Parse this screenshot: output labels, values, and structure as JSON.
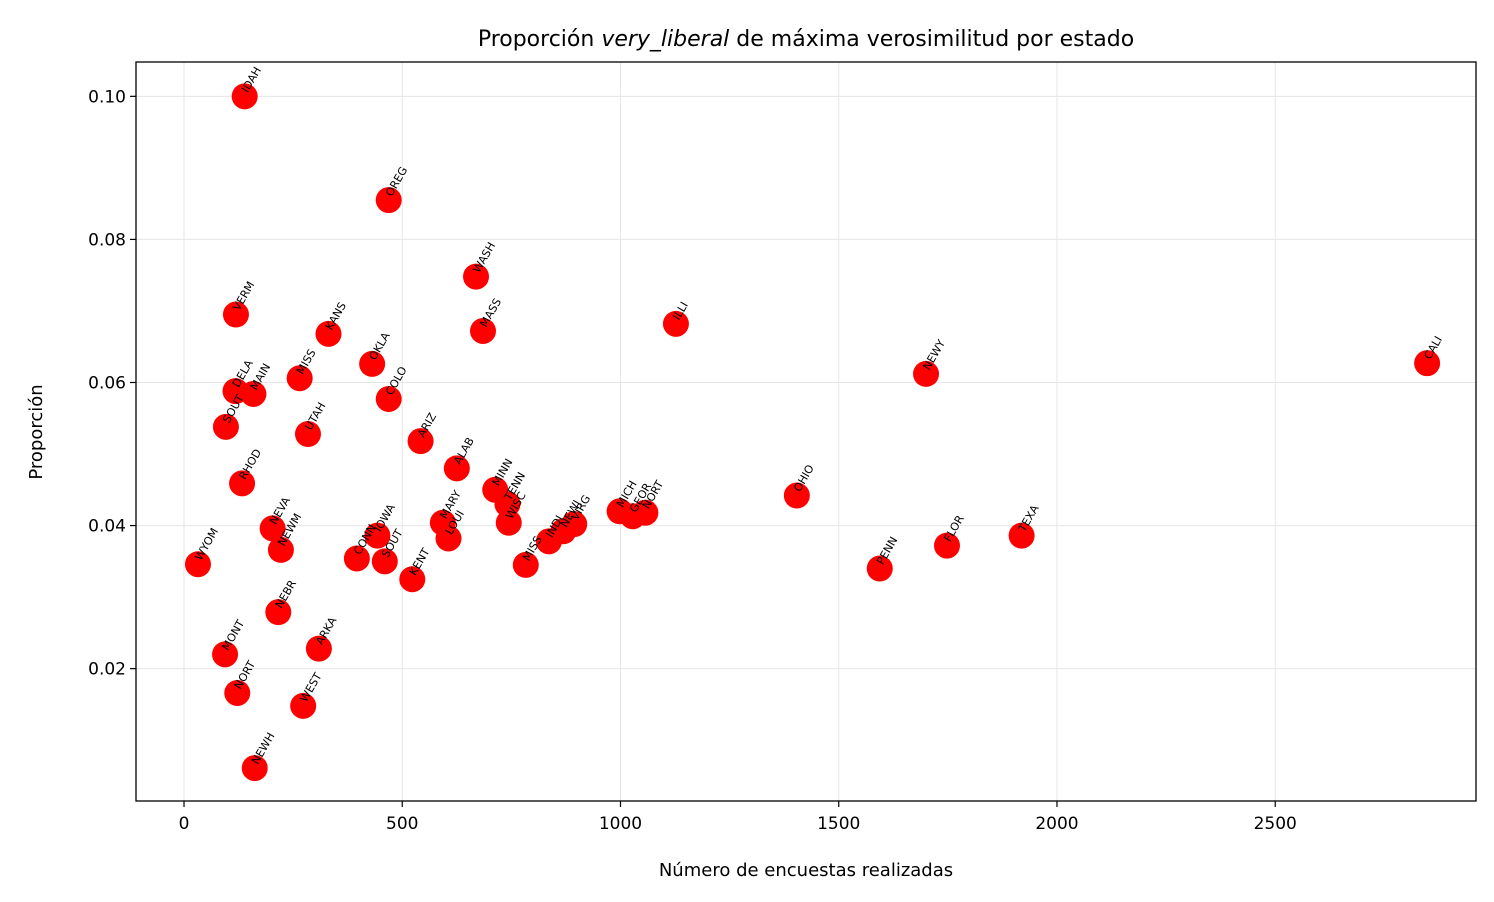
{
  "chart_data": {
    "type": "scatter",
    "title_pre": "Proporción ",
    "title_em": "very_liberal",
    "title_post": " de máxima verosimilitud por estado",
    "xlabel": "Número de encuestas realizadas",
    "ylabel": "Proporción",
    "xlim": [
      -110,
      2960
    ],
    "ylim": [
      0.0015,
      0.1048
    ],
    "xticks": [
      0,
      500,
      1000,
      1500,
      2000,
      2500
    ],
    "xtick_labels": [
      "0",
      "500",
      "1000",
      "1500",
      "2000",
      "2500"
    ],
    "yticks": [
      0.02,
      0.04,
      0.06,
      0.08,
      0.1
    ],
    "ytick_labels": [
      "0.02",
      "0.04",
      "0.06",
      "0.08",
      "0.10"
    ],
    "grid": true,
    "marker_color": "#ff0000",
    "points": [
      {
        "label": "IDAH",
        "x": 139,
        "y": 0.1
      },
      {
        "label": "OREG",
        "x": 469,
        "y": 0.0855
      },
      {
        "label": "WASH",
        "x": 669,
        "y": 0.0748
      },
      {
        "label": "VERM",
        "x": 119,
        "y": 0.0695
      },
      {
        "label": "KANS",
        "x": 331,
        "y": 0.0668
      },
      {
        "label": "MASS",
        "x": 685,
        "y": 0.0672
      },
      {
        "label": "ILLI",
        "x": 1127,
        "y": 0.0682
      },
      {
        "label": "OKLA",
        "x": 431,
        "y": 0.0626
      },
      {
        "label": "CALI",
        "x": 2848,
        "y": 0.0627
      },
      {
        "label": "NEWY",
        "x": 1700,
        "y": 0.0612
      },
      {
        "label": "MISS",
        "x": 265,
        "y": 0.0606
      },
      {
        "label": "DELA",
        "x": 118,
        "y": 0.0588
      },
      {
        "label": "MAIN",
        "x": 159,
        "y": 0.0584
      },
      {
        "label": "COLO",
        "x": 469,
        "y": 0.0577
      },
      {
        "label": "SOUT",
        "x": 96,
        "y": 0.0538
      },
      {
        "label": "UTAH",
        "x": 284,
        "y": 0.0528
      },
      {
        "label": "ARIZ",
        "x": 542,
        "y": 0.0518
      },
      {
        "label": "ALAB",
        "x": 625,
        "y": 0.048
      },
      {
        "label": "RHOD",
        "x": 133,
        "y": 0.0459
      },
      {
        "label": "MINN",
        "x": 713,
        "y": 0.045
      },
      {
        "label": "TENN",
        "x": 741,
        "y": 0.043
      },
      {
        "label": "OHIO",
        "x": 1404,
        "y": 0.0442
      },
      {
        "label": "MICH",
        "x": 998,
        "y": 0.042
      },
      {
        "label": "GEOR",
        "x": 1028,
        "y": 0.0413
      },
      {
        "label": "NORT",
        "x": 1057,
        "y": 0.0418
      },
      {
        "label": "WISC",
        "x": 744,
        "y": 0.0404
      },
      {
        "label": "VIRG",
        "x": 894,
        "y": 0.0402
      },
      {
        "label": "NEWJ",
        "x": 869,
        "y": 0.0392
      },
      {
        "label": "INDI",
        "x": 836,
        "y": 0.0378
      },
      {
        "label": "MARY",
        "x": 593,
        "y": 0.0404
      },
      {
        "label": "LOUI",
        "x": 606,
        "y": 0.0382
      },
      {
        "label": "NEVA",
        "x": 203,
        "y": 0.0396
      },
      {
        "label": "IOWA",
        "x": 443,
        "y": 0.0386
      },
      {
        "label": "TEXA",
        "x": 1919,
        "y": 0.0386
      },
      {
        "label": "FLOR",
        "x": 1748,
        "y": 0.0372
      },
      {
        "label": "NEWM",
        "x": 222,
        "y": 0.0366
      },
      {
        "label": "CONN",
        "x": 396,
        "y": 0.0354
      },
      {
        "label": "SOUT",
        "x": 460,
        "y": 0.035
      },
      {
        "label": "MISS",
        "x": 783,
        "y": 0.0345
      },
      {
        "label": "WYOM",
        "x": 32,
        "y": 0.0346
      },
      {
        "label": "PENN",
        "x": 1594,
        "y": 0.034
      },
      {
        "label": "KENT",
        "x": 523,
        "y": 0.0325
      },
      {
        "label": "NEBR",
        "x": 216,
        "y": 0.0279
      },
      {
        "label": "ARKA",
        "x": 309,
        "y": 0.0228
      },
      {
        "label": "MONT",
        "x": 94,
        "y": 0.022
      },
      {
        "label": "NORT",
        "x": 122,
        "y": 0.0166
      },
      {
        "label": "WEST",
        "x": 273,
        "y": 0.0148
      },
      {
        "label": "NEWH",
        "x": 162,
        "y": 0.0061
      }
    ]
  }
}
